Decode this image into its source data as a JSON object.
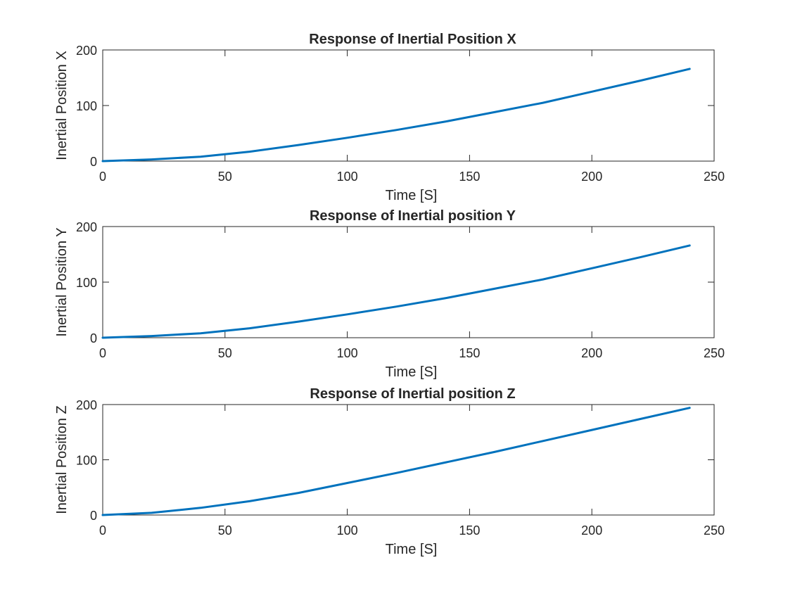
{
  "colors": {
    "series": "#0072BD",
    "axis": "#262626",
    "background": "#ffffff"
  },
  "chart_data": [
    {
      "type": "line",
      "title": "Response of Inertial Position X",
      "xlabel": "Time [S]",
      "ylabel": "Inertial Position X",
      "xlim": [
        0,
        250
      ],
      "ylim": [
        0,
        200
      ],
      "xticks": [
        0,
        50,
        100,
        150,
        200,
        250
      ],
      "yticks": [
        0,
        100,
        200
      ],
      "xtick_labels": [
        "0",
        "50",
        "100",
        "150",
        "200",
        "250"
      ],
      "ytick_labels": [
        "0",
        "100",
        "200"
      ],
      "grid": false,
      "series": [
        {
          "x": [
            0,
            20,
            40,
            60,
            80,
            100,
            120,
            140,
            160,
            180,
            200,
            220,
            240
          ],
          "y": [
            0,
            3,
            8,
            17,
            29,
            42,
            56,
            71,
            88,
            105,
            125,
            145,
            166
          ]
        }
      ]
    },
    {
      "type": "line",
      "title": "Response of Inertial position Y",
      "xlabel": "Time [S]",
      "ylabel": "Inertial Position Y",
      "xlim": [
        0,
        250
      ],
      "ylim": [
        0,
        200
      ],
      "xticks": [
        0,
        50,
        100,
        150,
        200,
        250
      ],
      "yticks": [
        0,
        100,
        200
      ],
      "xtick_labels": [
        "0",
        "50",
        "100",
        "150",
        "200",
        "250"
      ],
      "ytick_labels": [
        "0",
        "100",
        "200"
      ],
      "grid": false,
      "series": [
        {
          "x": [
            0,
            20,
            40,
            60,
            80,
            100,
            120,
            140,
            160,
            180,
            200,
            220,
            240
          ],
          "y": [
            0,
            3,
            8,
            17,
            29,
            42,
            56,
            71,
            88,
            105,
            125,
            145,
            166
          ]
        }
      ]
    },
    {
      "type": "line",
      "title": "Response of Inertial position Z",
      "xlabel": "Time [S]",
      "ylabel": "Inertial Position Z",
      "xlim": [
        0,
        250
      ],
      "ylim": [
        0,
        200
      ],
      "xticks": [
        0,
        50,
        100,
        150,
        200,
        250
      ],
      "yticks": [
        0,
        100,
        200
      ],
      "xtick_labels": [
        "0",
        "50",
        "100",
        "150",
        "200",
        "250"
      ],
      "ytick_labels": [
        "0",
        "100",
        "200"
      ],
      "grid": false,
      "series": [
        {
          "x": [
            0,
            20,
            40,
            60,
            80,
            100,
            120,
            140,
            160,
            180,
            200,
            220,
            240
          ],
          "y": [
            0,
            4,
            13,
            25,
            40,
            58,
            76,
            95,
            114,
            134,
            154,
            174,
            194
          ]
        }
      ]
    }
  ]
}
